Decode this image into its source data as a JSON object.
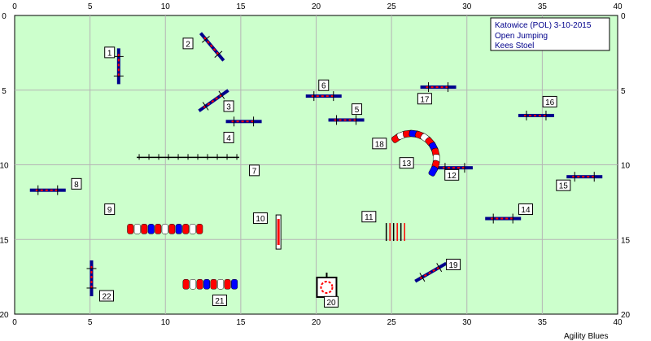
{
  "info": {
    "lines": [
      "Katowice (POL) 3-10-2015",
      "Open Jumping",
      "Kees Stoel"
    ]
  },
  "footer": "Agility Blues",
  "colors": {
    "field": "#ccffcc",
    "pole_dark": "#00008b",
    "pole_red": "#ff0000",
    "tunnel_red": "#ff0000",
    "tunnel_blue": "#0000ff",
    "tunnel_white": "#ffffff"
  },
  "chart_data": {
    "type": "course-map",
    "x_ticks": [
      0,
      5,
      10,
      15,
      20,
      25,
      30,
      35,
      40
    ],
    "y_ticks": [
      0,
      5,
      10,
      15,
      20
    ],
    "xlim": [
      0,
      40
    ],
    "ylim": [
      0,
      20
    ],
    "obstacles": [
      {
        "n": "1",
        "kind": "jump",
        "x": 6.9,
        "y": 3.4,
        "angle": 90,
        "label_x": 6.3,
        "label_y": 2.5
      },
      {
        "n": "2",
        "kind": "jump",
        "x": 13.1,
        "y": 2.1,
        "angle": 50,
        "label_x": 11.5,
        "label_y": 1.9
      },
      {
        "n": "3",
        "kind": "jump",
        "x": 13.2,
        "y": 5.7,
        "angle": -35,
        "label_x": 14.2,
        "label_y": 6.1
      },
      {
        "n": "4",
        "kind": "jump",
        "x": 15.2,
        "y": 7.1,
        "angle": 0,
        "label_x": 14.2,
        "label_y": 8.2
      },
      {
        "n": "5",
        "kind": "jump",
        "x": 22.0,
        "y": 7.0,
        "angle": 0,
        "label_x": 22.7,
        "label_y": 6.3
      },
      {
        "n": "6",
        "kind": "jump",
        "x": 20.5,
        "y": 5.4,
        "angle": 0,
        "label_x": 20.5,
        "label_y": 4.7
      },
      {
        "n": "7",
        "kind": "wall",
        "x": 11.5,
        "y": 9.5,
        "angle": 0,
        "label_x": 15.9,
        "label_y": 10.4
      },
      {
        "n": "8",
        "kind": "jump",
        "x": 2.2,
        "y": 11.7,
        "angle": 0,
        "label_x": 4.1,
        "label_y": 11.3
      },
      {
        "n": "9",
        "kind": "tunnel",
        "x": 10.0,
        "y": 14.3,
        "angle": 0,
        "label_x": 6.3,
        "label_y": 13.0
      },
      {
        "n": "10",
        "kind": "jump",
        "x": 17.5,
        "y": 14.5,
        "angle": 90,
        "label_x": 16.3,
        "label_y": 13.6
      },
      {
        "n": "11",
        "kind": "jump",
        "x": 25.3,
        "y": 14.5,
        "angle": 90,
        "label_x": 23.5,
        "label_y": 13.5
      },
      {
        "n": "12",
        "kind": "jump",
        "x": 29.2,
        "y": 10.2,
        "angle": 0,
        "label_x": 29.0,
        "label_y": 10.7
      },
      {
        "n": "13",
        "kind": "tunnel",
        "x": 25.4,
        "y": 10.5,
        "angle": 0,
        "label_x": 26.0,
        "label_y": 9.9
      },
      {
        "n": "14",
        "kind": "jump",
        "x": 32.4,
        "y": 13.6,
        "angle": 0,
        "label_x": 33.9,
        "label_y": 13.0
      },
      {
        "n": "15",
        "kind": "jump",
        "x": 37.8,
        "y": 10.8,
        "angle": 0,
        "label_x": 36.4,
        "label_y": 11.4
      },
      {
        "n": "16",
        "kind": "jump",
        "x": 34.6,
        "y": 6.7,
        "angle": 0,
        "label_x": 35.5,
        "label_y": 5.8
      },
      {
        "n": "17",
        "kind": "jump",
        "x": 28.1,
        "y": 4.8,
        "angle": 0,
        "label_x": 27.2,
        "label_y": 5.6
      },
      {
        "n": "18",
        "kind": "tunnel",
        "x": 25.0,
        "y": 10.0,
        "angle": 0,
        "label_x": 24.2,
        "label_y": 8.6
      },
      {
        "n": "19",
        "kind": "jump",
        "x": 27.6,
        "y": 17.2,
        "angle": -30,
        "label_x": 29.1,
        "label_y": 16.7
      },
      {
        "n": "20",
        "kind": "table",
        "x": 20.7,
        "y": 18.2,
        "angle": 0,
        "label_x": 21.0,
        "label_y": 19.2
      },
      {
        "n": "21",
        "kind": "tunnel",
        "x": 13.0,
        "y": 18.0,
        "angle": 0,
        "label_x": 13.6,
        "label_y": 19.1
      },
      {
        "n": "22",
        "kind": "jump",
        "x": 5.1,
        "y": 17.6,
        "angle": 90,
        "label_x": 6.1,
        "label_y": 18.8
      }
    ]
  }
}
